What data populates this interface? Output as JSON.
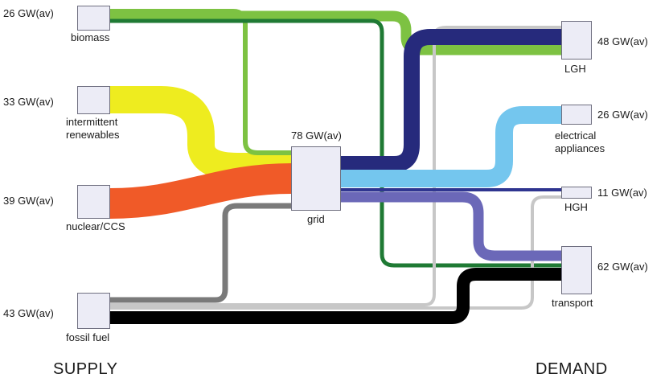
{
  "supply": {
    "biomass": {
      "label": "biomass",
      "value": "26 GW(av)"
    },
    "renewables": {
      "label_line1": "intermittent",
      "label_line2": "renewables",
      "value": "33 GW(av)"
    },
    "nuclear": {
      "label": "nuclear/CCS",
      "value": "39 GW(av)"
    },
    "fossil": {
      "label": "fossil fuel",
      "value": "43 GW(av)"
    }
  },
  "grid": {
    "label": "grid",
    "value": "78 GW(av)"
  },
  "demand": {
    "lgh": {
      "label": "LGH",
      "value": "48 GW(av)"
    },
    "electrical": {
      "label_line1": "electrical",
      "label_line2": "appliances",
      "value": "26 GW(av)"
    },
    "hgh": {
      "label": "HGH",
      "value": "11 GW(av)"
    },
    "transport": {
      "label": "transport",
      "value": "62 GW(av)"
    }
  },
  "footer": {
    "supply": "SUPPLY",
    "demand": "DEMAND"
  },
  "colors": {
    "biomass_light": "#7dc242",
    "biomass_dark": "#1f7a34",
    "renewables": "#eeec1f",
    "nuclear": "#f05a28",
    "fossil": "#000000",
    "fossil_grid": "#7a7a7a",
    "fossil_light": "#c7c7c7",
    "grid_lgh": "#262a7c",
    "grid_electrical": "#74c6ee",
    "grid_hgh": "#2f3590",
    "grid_transport": "#6b68b8"
  }
}
